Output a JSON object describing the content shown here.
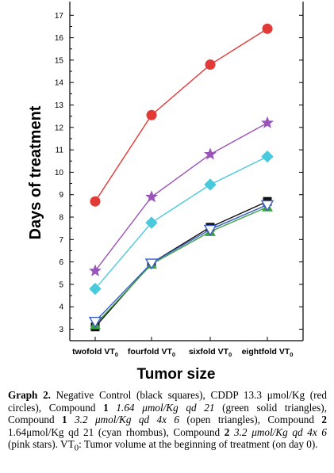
{
  "chart_data": {
    "type": "line",
    "xlabel": "Tumor size",
    "ylabel": "Days of treatment",
    "categories": [
      "twofold VT",
      "fourfold VT",
      "sixfold VT",
      "eightfold VT"
    ],
    "category_subscript": "0",
    "ylim": [
      2.6,
      17.4
    ],
    "yticks": [
      3,
      4,
      5,
      6,
      7,
      8,
      9,
      10,
      11,
      12,
      13,
      14,
      15,
      16,
      17
    ],
    "grid": false,
    "series": [
      {
        "marker": "square",
        "color": "#111111",
        "fill": "#111111",
        "values": [
          3.1,
          5.95,
          7.55,
          8.7
        ]
      },
      {
        "marker": "circle",
        "color": "#e23a36",
        "fill": "#e23a36",
        "values": [
          8.7,
          12.55,
          14.8,
          16.4
        ]
      },
      {
        "marker": "triangle-up",
        "color": "#3aa040",
        "fill": "#3aa040",
        "values": [
          3.2,
          5.9,
          7.35,
          8.45
        ]
      },
      {
        "marker": "triangle-down-open",
        "color": "#3a5fc8",
        "fill": "#ffffff",
        "values": [
          3.35,
          5.95,
          7.45,
          8.55
        ]
      },
      {
        "marker": "diamond",
        "color": "#49c9dc",
        "fill": "#49c9dc",
        "values": [
          4.8,
          7.75,
          9.45,
          10.7
        ]
      },
      {
        "marker": "star",
        "color": "#9a54b8",
        "fill": "#9a54b8",
        "values": [
          5.6,
          8.9,
          10.8,
          12.2
        ]
      }
    ]
  },
  "caption": {
    "label": "Graph 2.",
    "s1": " Negative Control (black squares), CDDP 13.3 μmol/Kg (red circles), Compound ",
    "c1": "1",
    "d1": " 1.64 μmol/Kg qd 21",
    "s2": " (green solid triangles), Compound ",
    "c2": "1",
    "d2": " 3.2 μmol/Kg qd 4x 6",
    "s3": " (open triangles), Compound ",
    "c3": "2",
    "d3": " 1.64μmol/Kg qd 21",
    "s4": " (cyan rhombus), Compound ",
    "c4": "2",
    "d4": " 3.2 μmol/Kg qd 4x 6",
    "s5": " (pink stars). VT",
    "sub": "0",
    "s6": ": Tumor volume at the beginning of treatment (on day 0)."
  }
}
